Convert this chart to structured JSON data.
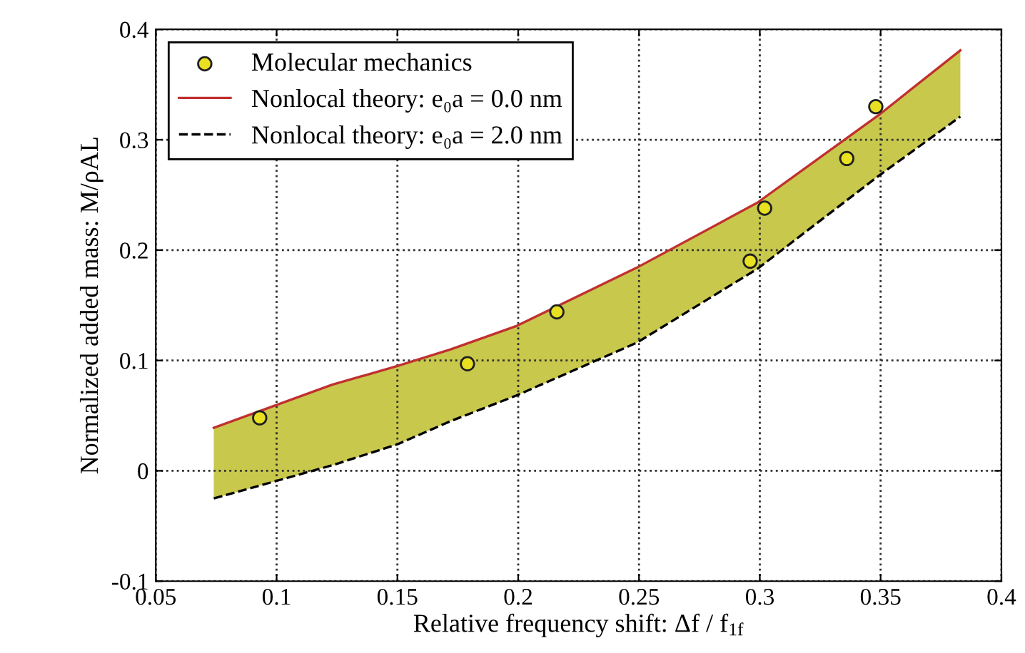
{
  "chart_data": {
    "type": "line",
    "xlabel": "Relative frequency shift: Δf / f$_{1f}$",
    "ylabel": "Normalized added mass: M/ρAL",
    "xlim": [
      0.05,
      0.4
    ],
    "ylim": [
      -0.1,
      0.4
    ],
    "xticks": [
      0.05,
      0.1,
      0.15,
      0.2,
      0.25,
      0.3,
      0.35,
      0.4
    ],
    "yticks": [
      -0.1,
      0,
      0.1,
      0.2,
      0.3,
      0.4
    ],
    "grid": true,
    "legend": "top left",
    "series": [
      {
        "type": "scatter",
        "name": "Molecular mechanics",
        "color": "#e8e020",
        "marker": "circle",
        "x": [
          0.093,
          0.179,
          0.216,
          0.296,
          0.302,
          0.336,
          0.348
        ],
        "values": [
          0.048,
          0.097,
          0.144,
          0.19,
          0.238,
          0.283,
          0.33
        ]
      },
      {
        "type": "line",
        "name": "Nonlocal theory: e₀a = 0.0 nm",
        "color": "#c03030",
        "line_style": "solid",
        "x": [
          0.074,
          0.123,
          0.15,
          0.172,
          0.199,
          0.249,
          0.299,
          0.349,
          0.383
        ],
        "values": [
          0.039,
          0.078,
          0.095,
          0.11,
          0.131,
          0.184,
          0.243,
          0.322,
          0.381
        ],
        "lower": [
          -0.025,
          0.005,
          0.024,
          0.045,
          0.068,
          0.116,
          0.183,
          0.267,
          0.321
        ],
        "upper": [
          0.039,
          0.078,
          0.095,
          0.11,
          0.131,
          0.184,
          0.243,
          0.322,
          0.381
        ]
      },
      {
        "type": "line",
        "name": "Nonlocal theory: e₀a = 2.0 nm",
        "color": "#000000",
        "line_style": "dashed",
        "x": [
          0.074,
          0.123,
          0.15,
          0.172,
          0.199,
          0.249,
          0.299,
          0.349,
          0.383
        ],
        "values": [
          -0.025,
          0.005,
          0.024,
          0.045,
          0.068,
          0.116,
          0.183,
          0.267,
          0.321
        ]
      }
    ]
  }
}
